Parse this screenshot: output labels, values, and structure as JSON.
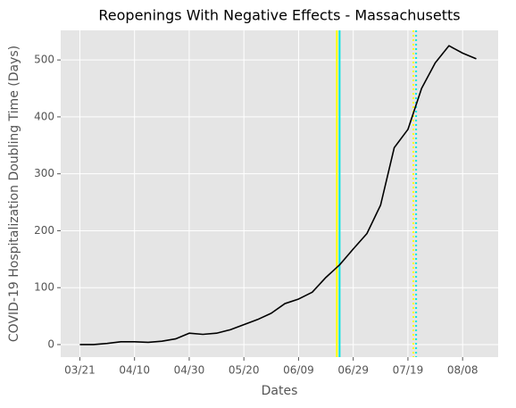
{
  "chart_data": {
    "type": "line",
    "title": "Reopenings With Negative Effects - Massachusetts",
    "xlabel": "Dates",
    "ylabel": "COVID-19 Hospitalization Doubling Time (Days)",
    "x": [
      "03/21",
      "03/26",
      "03/31",
      "04/05",
      "04/10",
      "04/15",
      "04/20",
      "04/25",
      "04/30",
      "05/05",
      "05/10",
      "05/15",
      "05/20",
      "05/25",
      "05/30",
      "06/04",
      "06/09",
      "06/14",
      "06/19",
      "06/24",
      "06/29",
      "07/04",
      "07/09",
      "07/14",
      "07/19",
      "07/24",
      "07/29",
      "08/03",
      "08/08",
      "08/13"
    ],
    "series": [
      {
        "color": "#000000",
        "values": [
          0,
          0,
          2,
          5,
          5,
          4,
          6,
          10,
          20,
          18,
          20,
          26,
          35,
          44,
          55,
          72,
          80,
          92,
          118,
          140,
          168,
          195,
          245,
          346,
          378,
          450,
          495,
          525,
          512,
          502
        ]
      }
    ],
    "vlines": [
      {
        "x": "06/23",
        "color": "#ffff00",
        "style": "solid"
      },
      {
        "x": "06/24",
        "color": "#00e5e5",
        "style": "solid"
      },
      {
        "x": "07/21",
        "color": "#ffff00",
        "style": "dotted"
      },
      {
        "x": "07/22",
        "color": "#00e5e5",
        "style": "dotted"
      }
    ],
    "xlim": [
      "03/14",
      "08/21"
    ],
    "xticks": [
      "03/21",
      "04/10",
      "04/30",
      "05/20",
      "06/09",
      "06/29",
      "07/19",
      "08/08"
    ],
    "ylim": [
      -22,
      552
    ],
    "yticks": [
      0,
      100,
      200,
      300,
      400,
      500
    ],
    "grid": true
  }
}
